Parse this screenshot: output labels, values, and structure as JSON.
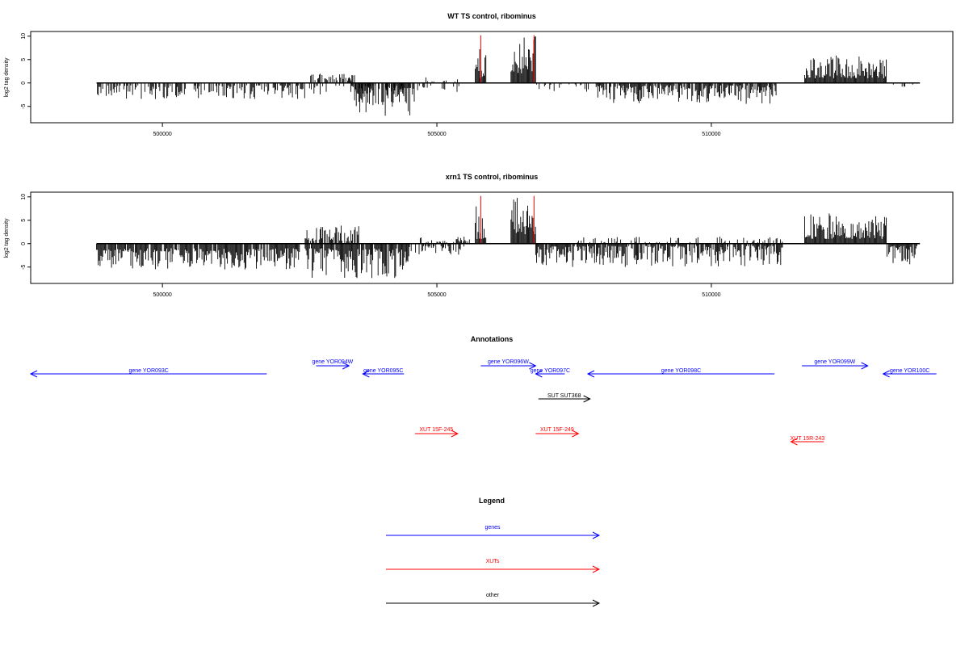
{
  "colors": {
    "genes": "#0000ff",
    "xuts": "#ff0000",
    "other": "#000000",
    "signal": "#000000",
    "peak": "#ff0000"
  },
  "chart_data": [
    {
      "type": "bar",
      "title": "WT TS control, ribominus",
      "ylabel": "log2 tag density",
      "xlim": [
        497600,
        514400
      ],
      "ylim": [
        -8.5,
        11
      ],
      "yticks": [
        -5,
        0,
        5,
        10
      ],
      "xticks": [
        500000,
        505000,
        510000
      ],
      "xtick_labels": [
        "500000",
        "505000",
        "510000"
      ],
      "baseline": [
        498800,
        513800
      ],
      "red_markers": [
        505800,
        506770
      ],
      "segments": [
        {
          "start": 498800,
          "end": 502600,
          "dir": "down",
          "min": 0.5,
          "max": 3.5,
          "density": 0.55
        },
        {
          "start": 502600,
          "end": 504400,
          "dir": "down",
          "min": 0.5,
          "max": 2.5,
          "density": 0.35
        },
        {
          "start": 502700,
          "end": 503500,
          "dir": "up",
          "min": 0.5,
          "max": 2.0,
          "density": 0.6
        },
        {
          "start": 503500,
          "end": 504600,
          "dir": "down",
          "min": 1.0,
          "max": 7.0,
          "density": 0.9
        },
        {
          "start": 504600,
          "end": 505400,
          "dir": "down",
          "min": 0.5,
          "max": 2.0,
          "density": 0.25
        },
        {
          "start": 504800,
          "end": 505400,
          "dir": "up",
          "min": 0.3,
          "max": 1.2,
          "density": 0.2
        },
        {
          "start": 505700,
          "end": 505900,
          "dir": "up",
          "min": 1.0,
          "max": 7.5,
          "density": 1.0
        },
        {
          "start": 506350,
          "end": 506800,
          "dir": "up",
          "min": 2.0,
          "max": 10.0,
          "density": 1.0
        },
        {
          "start": 506800,
          "end": 507900,
          "dir": "down",
          "min": 0.3,
          "max": 2.0,
          "density": 0.25
        },
        {
          "start": 507900,
          "end": 511200,
          "dir": "down",
          "min": 0.5,
          "max": 4.5,
          "density": 0.75
        },
        {
          "start": 511700,
          "end": 513200,
          "dir": "up",
          "min": 1.0,
          "max": 6.0,
          "density": 1.0
        },
        {
          "start": 513300,
          "end": 513700,
          "dir": "down",
          "min": 0.3,
          "max": 1.0,
          "density": 0.1
        }
      ]
    },
    {
      "type": "bar",
      "title": "xrn1 TS control, ribominus",
      "ylabel": "log2 tag density",
      "xlim": [
        497600,
        514400
      ],
      "ylim": [
        -8.5,
        11
      ],
      "yticks": [
        -5,
        0,
        5,
        10
      ],
      "xticks": [
        500000,
        505000,
        510000
      ],
      "xtick_labels": [
        "500000",
        "505000",
        "510000"
      ],
      "baseline": [
        498800,
        513800
      ],
      "red_markers": [
        505800,
        506770
      ],
      "segments": [
        {
          "start": 498800,
          "end": 502500,
          "dir": "down",
          "min": 1.0,
          "max": 5.5,
          "density": 0.9
        },
        {
          "start": 502600,
          "end": 503600,
          "dir": "up",
          "min": 0.5,
          "max": 4.0,
          "density": 0.8
        },
        {
          "start": 502600,
          "end": 504500,
          "dir": "down",
          "min": 1.0,
          "max": 7.5,
          "density": 0.95
        },
        {
          "start": 504500,
          "end": 505500,
          "dir": "down",
          "min": 0.5,
          "max": 2.5,
          "density": 0.4
        },
        {
          "start": 504600,
          "end": 505600,
          "dir": "up",
          "min": 0.3,
          "max": 1.5,
          "density": 0.3
        },
        {
          "start": 505700,
          "end": 505900,
          "dir": "up",
          "min": 1.0,
          "max": 8.0,
          "density": 1.0
        },
        {
          "start": 506350,
          "end": 506800,
          "dir": "up",
          "min": 2.0,
          "max": 10.0,
          "density": 1.0
        },
        {
          "start": 506800,
          "end": 511300,
          "dir": "down",
          "min": 0.5,
          "max": 5.0,
          "density": 0.85
        },
        {
          "start": 507500,
          "end": 511300,
          "dir": "up",
          "min": 0.3,
          "max": 1.5,
          "density": 0.25
        },
        {
          "start": 511700,
          "end": 513200,
          "dir": "up",
          "min": 1.0,
          "max": 6.5,
          "density": 1.0
        },
        {
          "start": 513200,
          "end": 513750,
          "dir": "down",
          "min": 0.5,
          "max": 4.5,
          "density": 0.9
        }
      ]
    }
  ],
  "annotations": {
    "title": "Annotations",
    "items": [
      {
        "label": "gene YOR093C",
        "type": "genes",
        "dir": "left",
        "start": 497600,
        "end": 501900,
        "row": "gene_low"
      },
      {
        "label": "gene YOR094W",
        "type": "genes",
        "dir": "right",
        "start": 502800,
        "end": 503400,
        "row": "gene_high"
      },
      {
        "label": "gene YOR095C",
        "type": "genes",
        "dir": "left",
        "start": 503650,
        "end": 504400,
        "row": "gene_low"
      },
      {
        "label": "gene YOR096W",
        "type": "genes",
        "dir": "right",
        "start": 505800,
        "end": 506800,
        "row": "gene_high"
      },
      {
        "label": "gene YOR097C",
        "type": "genes",
        "dir": "left",
        "start": 506800,
        "end": 507330,
        "row": "gene_low"
      },
      {
        "label": "gene YOR098C",
        "type": "genes",
        "dir": "left",
        "start": 507750,
        "end": 511150,
        "row": "gene_low"
      },
      {
        "label": "gene YOR099W",
        "type": "genes",
        "dir": "right",
        "start": 511650,
        "end": 512850,
        "row": "gene_high"
      },
      {
        "label": "gene YOR100C",
        "type": "genes",
        "dir": "left",
        "start": 513130,
        "end": 514100,
        "row": "gene_low"
      },
      {
        "label": "SUT SUT368",
        "type": "other",
        "dir": "right",
        "start": 506850,
        "end": 507790,
        "row": "sut"
      },
      {
        "label": "XUT 15F-245",
        "type": "xuts",
        "dir": "right",
        "start": 504600,
        "end": 505380,
        "row": "xut"
      },
      {
        "label": "XUT 15F-249",
        "type": "xuts",
        "dir": "right",
        "start": 506800,
        "end": 507580,
        "row": "xut"
      },
      {
        "label": "XUT 15R-243",
        "type": "xuts",
        "dir": "left",
        "start": 511450,
        "end": 512050,
        "row": "xut_low"
      }
    ]
  },
  "legend": {
    "title": "Legend",
    "items": [
      {
        "label": "genes",
        "type": "genes"
      },
      {
        "label": "XUTs",
        "type": "xuts"
      },
      {
        "label": "other",
        "type": "other"
      }
    ]
  }
}
